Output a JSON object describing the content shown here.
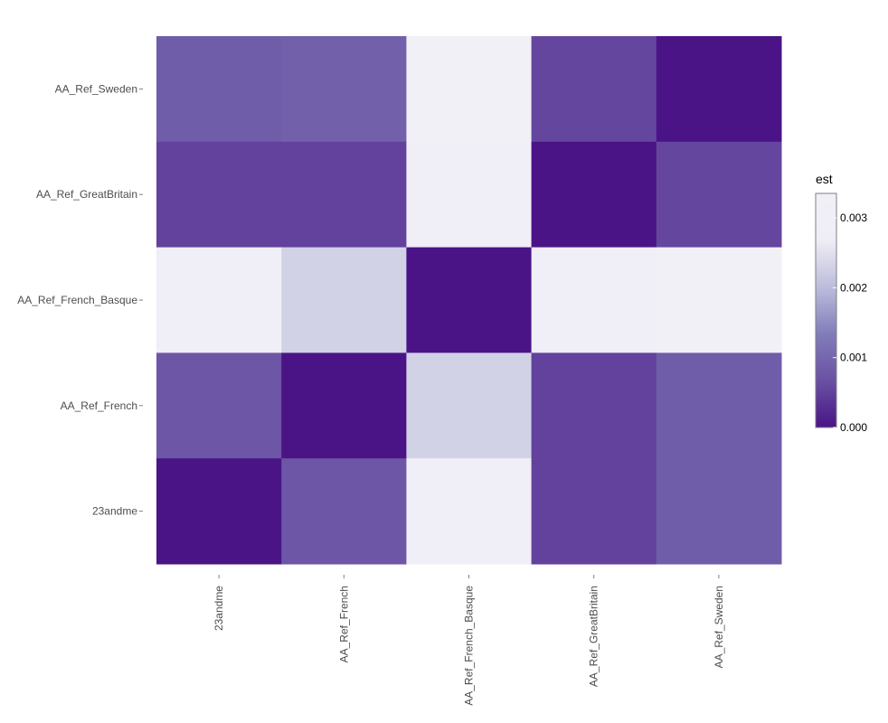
{
  "chart_data": {
    "type": "heatmap",
    "title": "",
    "xlabel": "",
    "ylabel": "",
    "x_categories": [
      "23andme",
      "AA_Ref_French",
      "AA_Ref_French_Basque",
      "AA_Ref_GreatBritain",
      "AA_Ref_Sweden"
    ],
    "y_categories": [
      "AA_Ref_Sweden",
      "AA_Ref_GreatBritain",
      "AA_Ref_French_Basque",
      "AA_Ref_French",
      "23andme"
    ],
    "values": [
      [
        0.00085,
        0.0009,
        0.0033,
        0.00055,
        0.0
      ],
      [
        0.0005,
        0.0005,
        0.0029,
        0.0,
        0.00055
      ],
      [
        0.003,
        0.0023,
        0.0,
        0.0029,
        0.0033
      ],
      [
        0.00075,
        0.0,
        0.0023,
        0.0005,
        0.00085
      ],
      [
        0.0,
        0.00075,
        0.003,
        0.0005,
        0.00085
      ]
    ],
    "legend": {
      "title": "est",
      "placement": "right",
      "ticks": [
        0.0,
        0.001,
        0.002,
        0.003
      ],
      "tick_labels": [
        "0.000",
        "0.001",
        "0.002",
        "0.003"
      ],
      "range": [
        0,
        0.00335
      ]
    },
    "colors": {
      "low": "#4a1486",
      "mid": "#807dba",
      "high": "#f2f0f7",
      "gradient": [
        "#4a1486",
        "#6a51a3",
        "#807dba",
        "#bcbddc",
        "#efedf5",
        "#f2f0f7"
      ]
    },
    "grid": false
  }
}
